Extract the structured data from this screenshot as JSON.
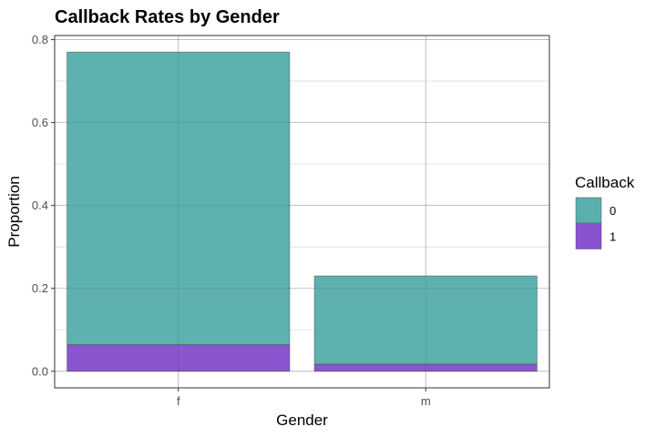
{
  "chart_data": {
    "type": "bar",
    "stacked": true,
    "title": "Callback Rates by Gender",
    "xlabel": "Gender",
    "ylabel": "Proportion",
    "categories": [
      "f",
      "m"
    ],
    "series": [
      {
        "name": "0",
        "values": [
          0.706,
          0.213
        ],
        "color": "#5aafad"
      },
      {
        "name": "1",
        "values": [
          0.064,
          0.017
        ],
        "color": "#8a52cf"
      }
    ],
    "ylim": [
      -0.04,
      0.81
    ],
    "yticks": [
      0.0,
      0.2,
      0.4,
      0.6,
      0.8
    ],
    "ytick_labels": [
      "0.0",
      "0.2",
      "0.4",
      "0.6",
      "0.8"
    ],
    "grid": true,
    "legend": {
      "title": "Callback",
      "position": "right",
      "entries": [
        "0",
        "1"
      ]
    }
  }
}
